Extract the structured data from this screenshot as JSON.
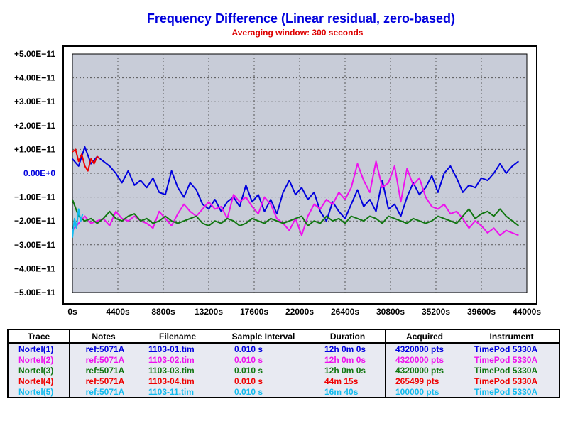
{
  "chart_data": {
    "type": "line",
    "title": "Frequency Difference (Linear residual, zero-based)",
    "subtitle": "Averaging window: 300 seconds",
    "xlabel": "",
    "ylabel": "",
    "xlim": [
      0,
      44000
    ],
    "ylim": [
      -5e-11,
      5e-11
    ],
    "grid": true,
    "background": "#c8ccd8",
    "x_tick_labels": [
      "0s",
      "4400s",
      "8800s",
      "13200s",
      "17600s",
      "22000s",
      "26400s",
      "30800s",
      "35200s",
      "39600s",
      "44000s"
    ],
    "y_tick_labels": [
      "+5.00E−11",
      "+4.00E−11",
      "+3.00E−11",
      "+2.00E−11",
      "+1.00E−11",
      "0.00E+0",
      "−1.00E−11",
      "−2.00E−11",
      "−3.00E−11",
      "−4.00E−11",
      "−5.00E−11"
    ],
    "series": [
      {
        "name": "Nortel(1)",
        "color": "#0000dd",
        "x": [
          0,
          600,
          1200,
          1800,
          2400,
          3000,
          3600,
          4200,
          4800,
          5400,
          6000,
          6600,
          7200,
          7800,
          8400,
          9000,
          9600,
          10200,
          10800,
          11400,
          12000,
          12600,
          13200,
          13800,
          14400,
          15000,
          15600,
          16200,
          16800,
          17400,
          18000,
          18600,
          19200,
          19800,
          20400,
          21000,
          21600,
          22200,
          22800,
          23400,
          24000,
          24600,
          25200,
          25800,
          26400,
          27000,
          27600,
          28200,
          28800,
          29400,
          30000,
          30600,
          31200,
          31800,
          32400,
          33000,
          33600,
          34200,
          34800,
          35400,
          36000,
          36600,
          37200,
          37800,
          38400,
          39000,
          39600,
          40200,
          40800,
          41400,
          42000,
          42600,
          43200
        ],
        "y": [
          0.6,
          0.3,
          1.1,
          0.4,
          0.7,
          0.5,
          0.3,
          0.0,
          -0.4,
          0.1,
          -0.5,
          -0.3,
          -0.6,
          -0.2,
          -0.8,
          -0.9,
          0.1,
          -0.6,
          -1.0,
          -0.4,
          -0.7,
          -1.3,
          -1.5,
          -1.1,
          -1.6,
          -1.2,
          -1.0,
          -1.4,
          -0.5,
          -1.2,
          -0.9,
          -1.6,
          -1.1,
          -1.7,
          -0.8,
          -0.3,
          -0.9,
          -0.6,
          -1.1,
          -0.8,
          -1.6,
          -2.0,
          -1.2,
          -1.6,
          -1.9,
          -1.3,
          -0.7,
          -1.4,
          -1.1,
          -1.6,
          -0.3,
          -1.5,
          -1.3,
          -1.8,
          -1.0,
          -0.4,
          -0.9,
          -0.6,
          -0.1,
          -0.8,
          0.0,
          0.3,
          -0.2,
          -0.8,
          -0.5,
          -0.6,
          -0.2,
          -0.3,
          0.0,
          0.4,
          0.0,
          0.3,
          0.5
        ]
      },
      {
        "name": "Nortel(2)",
        "color": "#ee11ee",
        "x": [
          0,
          600,
          1200,
          1800,
          2400,
          3000,
          3600,
          4200,
          4800,
          5400,
          6000,
          6600,
          7200,
          7800,
          8400,
          9000,
          9600,
          10200,
          10800,
          11400,
          12000,
          12600,
          13200,
          13800,
          14400,
          15000,
          15600,
          16200,
          16800,
          17400,
          18000,
          18600,
          19200,
          19800,
          20400,
          21000,
          21600,
          22200,
          22800,
          23400,
          24000,
          24600,
          25200,
          25800,
          26400,
          27000,
          27600,
          28200,
          28800,
          29400,
          30000,
          30600,
          31200,
          31800,
          32400,
          33000,
          33600,
          34200,
          34800,
          35400,
          36000,
          36600,
          37200,
          37800,
          38400,
          39000,
          39600,
          40200,
          40800,
          41400,
          42000,
          42600,
          43200
        ],
        "y": [
          -2.4,
          -2.1,
          -1.8,
          -2.1,
          -2.0,
          -1.9,
          -2.2,
          -1.6,
          -1.9,
          -2.0,
          -1.8,
          -2.0,
          -2.1,
          -2.3,
          -1.6,
          -1.9,
          -2.2,
          -1.7,
          -1.3,
          -1.6,
          -1.8,
          -1.5,
          -1.2,
          -1.5,
          -1.4,
          -1.9,
          -0.9,
          -1.2,
          -1.0,
          -1.4,
          -1.7,
          -1.0,
          -1.3,
          -1.9,
          -2.1,
          -2.4,
          -1.9,
          -2.6,
          -1.8,
          -1.3,
          -1.5,
          -1.1,
          -1.3,
          -0.8,
          -1.1,
          -0.6,
          0.4,
          -0.3,
          -0.8,
          0.5,
          -0.6,
          -0.4,
          0.3,
          -1.2,
          0.2,
          -0.5,
          -0.2,
          -1.0,
          -1.4,
          -1.5,
          -1.3,
          -1.7,
          -1.6,
          -1.9,
          -2.3,
          -2.0,
          -2.2,
          -2.5,
          -2.3,
          -2.6,
          -2.4,
          -2.5,
          -2.6
        ]
      },
      {
        "name": "Nortel(3)",
        "color": "#117711",
        "x": [
          0,
          600,
          1200,
          1800,
          2400,
          3000,
          3600,
          4200,
          4800,
          5400,
          6000,
          6600,
          7200,
          7800,
          8400,
          9000,
          9600,
          10200,
          10800,
          11400,
          12000,
          12600,
          13200,
          13800,
          14400,
          15000,
          15600,
          16200,
          16800,
          17400,
          18000,
          18600,
          19200,
          19800,
          20400,
          21000,
          21600,
          22200,
          22800,
          23400,
          24000,
          24600,
          25200,
          25800,
          26400,
          27000,
          27600,
          28200,
          28800,
          29400,
          30000,
          30600,
          31200,
          31800,
          32400,
          33000,
          33600,
          34200,
          34800,
          35400,
          36000,
          36600,
          37200,
          37800,
          38400,
          39000,
          39600,
          40200,
          40800,
          41400,
          42000,
          42600,
          43200
        ],
        "y": [
          -1.1,
          -1.8,
          -2.0,
          -1.9,
          -2.1,
          -1.9,
          -1.6,
          -1.9,
          -2.0,
          -1.8,
          -1.7,
          -2.0,
          -1.9,
          -2.1,
          -2.0,
          -1.8,
          -2.0,
          -2.1,
          -2.0,
          -1.9,
          -1.8,
          -2.1,
          -2.2,
          -2.0,
          -2.1,
          -1.9,
          -2.0,
          -2.2,
          -2.1,
          -1.9,
          -2.0,
          -2.1,
          -1.9,
          -2.0,
          -2.1,
          -2.0,
          -1.9,
          -1.8,
          -2.2,
          -2.0,
          -2.1,
          -1.8,
          -2.0,
          -1.9,
          -2.1,
          -1.8,
          -1.9,
          -2.0,
          -1.8,
          -1.9,
          -2.1,
          -1.8,
          -1.9,
          -2.0,
          -2.1,
          -1.9,
          -2.0,
          -2.1,
          -2.0,
          -1.8,
          -1.9,
          -2.0,
          -2.1,
          -1.8,
          -1.5,
          -1.9,
          -1.7,
          -1.6,
          -1.8,
          -1.5,
          -1.8,
          -2.0,
          -2.2
        ]
      },
      {
        "name": "Nortel(4)",
        "color": "#ee0000",
        "x": [
          0,
          300,
          600,
          900,
          1200,
          1500,
          1800,
          2100,
          2400,
          2655
        ],
        "y": [
          0.9,
          1.0,
          0.5,
          0.8,
          0.3,
          0.1,
          0.6,
          0.4,
          0.7,
          0.6
        ]
      },
      {
        "name": "Nortel(5)",
        "color": "#11bbee",
        "x": [
          0,
          200,
          400,
          600,
          800,
          1000
        ],
        "y": [
          -2.7,
          -1.9,
          -2.3,
          -1.5,
          -2.0,
          -1.7
        ]
      }
    ]
  },
  "legend_table": {
    "headers": {
      "trace": "Trace",
      "notes": "Notes",
      "filename": "Filename",
      "sample_interval": "Sample Interval",
      "duration": "Duration",
      "acquired": "Acquired",
      "instrument": "Instrument"
    },
    "rows": [
      {
        "trace": "Nortel(1)",
        "notes": "ref:5071A",
        "filename": "1103-01.tim",
        "sample_interval": "0.010 s",
        "duration": "12h 0m 0s",
        "acquired": "4320000 pts",
        "instrument": "TimePod 5330A",
        "color": "#0000dd"
      },
      {
        "trace": "Nortel(2)",
        "notes": "ref:5071A",
        "filename": "1103-02.tim",
        "sample_interval": "0.010 s",
        "duration": "12h 0m 0s",
        "acquired": "4320000 pts",
        "instrument": "TimePod 5330A",
        "color": "#ee11ee"
      },
      {
        "trace": "Nortel(3)",
        "notes": "ref:5071A",
        "filename": "1103-03.tim",
        "sample_interval": "0.010 s",
        "duration": "12h 0m 0s",
        "acquired": "4320000 pts",
        "instrument": "TimePod 5330A",
        "color": "#117711"
      },
      {
        "trace": "Nortel(4)",
        "notes": "ref:5071A",
        "filename": "1103-04.tim",
        "sample_interval": "0.010 s",
        "duration": "44m 15s",
        "acquired": "265499 pts",
        "instrument": "TimePod 5330A",
        "color": "#ee0000"
      },
      {
        "trace": "Nortel(5)",
        "notes": "ref:5071A",
        "filename": "1103-11.tim",
        "sample_interval": "0.010 s",
        "duration": "16m 40s",
        "acquired": "100000 pts",
        "instrument": "TimePod 5330A",
        "color": "#11bbee"
      }
    ]
  }
}
